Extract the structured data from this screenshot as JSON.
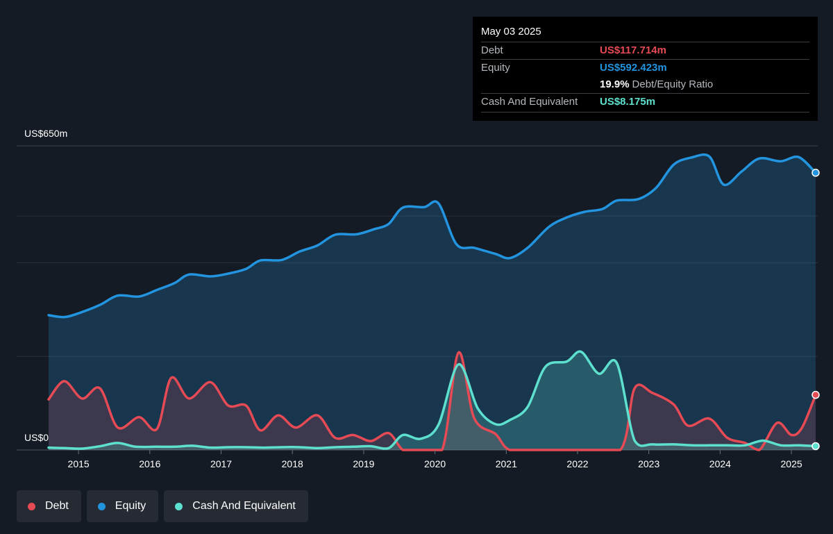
{
  "chart_data": {
    "type": "area",
    "y_unit": "US$m",
    "ylim": [
      0,
      650
    ],
    "y_axis_labels": {
      "top": "US$650m",
      "bottom": "US$0"
    },
    "x_ticks": [
      "2015",
      "2016",
      "2017",
      "2018",
      "2019",
      "2020",
      "2021",
      "2022",
      "2023",
      "2024",
      "2025"
    ],
    "x_tick_values": [
      2015,
      2016,
      2017,
      2018,
      2019,
      2020,
      2021,
      2022,
      2023,
      2024,
      2025
    ],
    "xlim": [
      2014.58,
      2025.34
    ],
    "grid": true,
    "legend_position": "bottom-left",
    "series": [
      {
        "name": "Equity",
        "color": "#2394df",
        "points": [
          [
            2014.58,
            288
          ],
          [
            2014.8,
            284
          ],
          [
            2015.0,
            292
          ],
          [
            2015.3,
            310
          ],
          [
            2015.55,
            330
          ],
          [
            2015.85,
            328
          ],
          [
            2016.1,
            342
          ],
          [
            2016.35,
            357
          ],
          [
            2016.55,
            375
          ],
          [
            2016.85,
            371
          ],
          [
            2017.1,
            377
          ],
          [
            2017.35,
            387
          ],
          [
            2017.55,
            405
          ],
          [
            2017.85,
            406
          ],
          [
            2018.1,
            424
          ],
          [
            2018.35,
            437
          ],
          [
            2018.6,
            460
          ],
          [
            2018.9,
            461
          ],
          [
            2019.15,
            472
          ],
          [
            2019.35,
            483
          ],
          [
            2019.55,
            518
          ],
          [
            2019.85,
            519
          ],
          [
            2020.05,
            527
          ],
          [
            2020.3,
            440
          ],
          [
            2020.55,
            432
          ],
          [
            2020.85,
            419
          ],
          [
            2021.05,
            410
          ],
          [
            2021.3,
            432
          ],
          [
            2021.6,
            477
          ],
          [
            2021.85,
            497
          ],
          [
            2022.1,
            509
          ],
          [
            2022.35,
            515
          ],
          [
            2022.55,
            533
          ],
          [
            2022.85,
            536
          ],
          [
            2023.1,
            560
          ],
          [
            2023.35,
            610
          ],
          [
            2023.6,
            625
          ],
          [
            2023.85,
            627
          ],
          [
            2024.05,
            567
          ],
          [
            2024.3,
            595
          ],
          [
            2024.55,
            623
          ],
          [
            2024.85,
            617
          ],
          [
            2025.1,
            626
          ],
          [
            2025.34,
            592.423
          ]
        ]
      },
      {
        "name": "Debt",
        "color": "#e64a55",
        "points": [
          [
            2014.58,
            108
          ],
          [
            2014.8,
            147
          ],
          [
            2015.05,
            110
          ],
          [
            2015.3,
            132
          ],
          [
            2015.55,
            48
          ],
          [
            2015.85,
            70
          ],
          [
            2016.1,
            45
          ],
          [
            2016.3,
            154
          ],
          [
            2016.55,
            110
          ],
          [
            2016.85,
            145
          ],
          [
            2017.1,
            95
          ],
          [
            2017.35,
            95
          ],
          [
            2017.55,
            42
          ],
          [
            2017.8,
            74
          ],
          [
            2018.05,
            48
          ],
          [
            2018.35,
            74
          ],
          [
            2018.6,
            26
          ],
          [
            2018.85,
            32
          ],
          [
            2019.1,
            19
          ],
          [
            2019.35,
            36
          ],
          [
            2019.55,
            0
          ],
          [
            2019.75,
            0
          ],
          [
            2020.1,
            0
          ],
          [
            2020.33,
            208
          ],
          [
            2020.55,
            68
          ],
          [
            2020.85,
            34
          ],
          [
            2021.05,
            0
          ],
          [
            2021.5,
            0
          ],
          [
            2022.0,
            0
          ],
          [
            2022.6,
            0
          ],
          [
            2022.8,
            132
          ],
          [
            2023.05,
            122
          ],
          [
            2023.35,
            97
          ],
          [
            2023.55,
            52
          ],
          [
            2023.85,
            67
          ],
          [
            2024.1,
            26
          ],
          [
            2024.35,
            15
          ],
          [
            2024.55,
            0
          ],
          [
            2024.8,
            58
          ],
          [
            2025.0,
            32
          ],
          [
            2025.15,
            48
          ],
          [
            2025.34,
            117.714
          ]
        ]
      },
      {
        "name": "Cash And Equivalent",
        "color": "#5ee0cf",
        "points": [
          [
            2014.58,
            5
          ],
          [
            2014.8,
            4
          ],
          [
            2015.05,
            3
          ],
          [
            2015.3,
            8
          ],
          [
            2015.55,
            15
          ],
          [
            2015.8,
            7
          ],
          [
            2016.1,
            7
          ],
          [
            2016.35,
            7
          ],
          [
            2016.6,
            9
          ],
          [
            2016.85,
            5
          ],
          [
            2017.1,
            6
          ],
          [
            2017.35,
            6
          ],
          [
            2017.6,
            5
          ],
          [
            2017.85,
            6
          ],
          [
            2018.1,
            6
          ],
          [
            2018.35,
            4
          ],
          [
            2018.6,
            6
          ],
          [
            2018.85,
            7
          ],
          [
            2019.1,
            8
          ],
          [
            2019.35,
            4
          ],
          [
            2019.55,
            32
          ],
          [
            2019.8,
            24
          ],
          [
            2020.05,
            54
          ],
          [
            2020.33,
            183
          ],
          [
            2020.6,
            89
          ],
          [
            2020.85,
            55
          ],
          [
            2021.05,
            64
          ],
          [
            2021.3,
            92
          ],
          [
            2021.55,
            178
          ],
          [
            2021.85,
            189
          ],
          [
            2022.05,
            210
          ],
          [
            2022.3,
            163
          ],
          [
            2022.55,
            186
          ],
          [
            2022.8,
            20
          ],
          [
            2023.05,
            12
          ],
          [
            2023.35,
            12
          ],
          [
            2023.6,
            10
          ],
          [
            2023.85,
            10
          ],
          [
            2024.1,
            10
          ],
          [
            2024.35,
            10
          ],
          [
            2024.6,
            20
          ],
          [
            2024.85,
            10
          ],
          [
            2025.1,
            10
          ],
          [
            2025.34,
            8.175
          ]
        ]
      }
    ]
  },
  "tooltip": {
    "date": "May 03 2025",
    "debt_label": "Debt",
    "debt_value": "US$117.714m",
    "equity_label": "Equity",
    "equity_value": "US$592.423m",
    "ratio_value": "19.9%",
    "ratio_label": "Debt/Equity Ratio",
    "cash_label": "Cash And Equivalent",
    "cash_value": "US$8.175m"
  },
  "legend": {
    "debt": {
      "label": "Debt",
      "color": "#e64a55"
    },
    "equity": {
      "label": "Equity",
      "color": "#2394df"
    },
    "cash": {
      "label": "Cash And Equivalent",
      "color": "#5ee0cf"
    }
  }
}
